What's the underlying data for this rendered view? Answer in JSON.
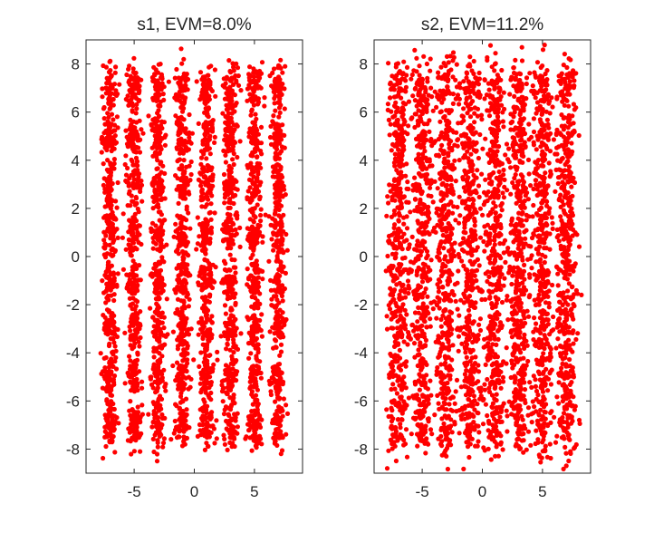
{
  "chart_data": [
    {
      "type": "scatter",
      "title": "s1, EVM=8.0%",
      "xlabel": "",
      "ylabel": "",
      "xlim": [
        -9,
        9
      ],
      "ylim": [
        -9,
        9
      ],
      "xticks": [
        -5,
        0,
        5
      ],
      "yticks": [
        -8,
        -6,
        -4,
        -2,
        0,
        2,
        4,
        6,
        8
      ],
      "grid": false,
      "constellation": {
        "i_levels": [
          -7,
          -5,
          -3,
          -1,
          1,
          3,
          5,
          7
        ],
        "q_levels": [
          -7,
          -5,
          -3,
          -1,
          1,
          3,
          5,
          7
        ],
        "points_per_symbol": 60,
        "spread_i": 0.3,
        "spread_q": 0.5
      },
      "marker_color": "#ff0000"
    },
    {
      "type": "scatter",
      "title": "s2, EVM=11.2%",
      "xlabel": "",
      "ylabel": "",
      "xlim": [
        -9,
        9
      ],
      "ylim": [
        -9,
        9
      ],
      "xticks": [
        -5,
        0,
        5
      ],
      "yticks": [
        -8,
        -6,
        -4,
        -2,
        0,
        2,
        4,
        6,
        8
      ],
      "grid": false,
      "constellation": {
        "i_levels": [
          -7,
          -5,
          -3,
          -1,
          1,
          3,
          5,
          7
        ],
        "q_levels": [
          -7,
          -5,
          -3,
          -1,
          1,
          3,
          5,
          7
        ],
        "points_per_symbol": 60,
        "spread_i": 0.42,
        "spread_q": 0.7
      },
      "marker_color": "#ff0000"
    }
  ]
}
